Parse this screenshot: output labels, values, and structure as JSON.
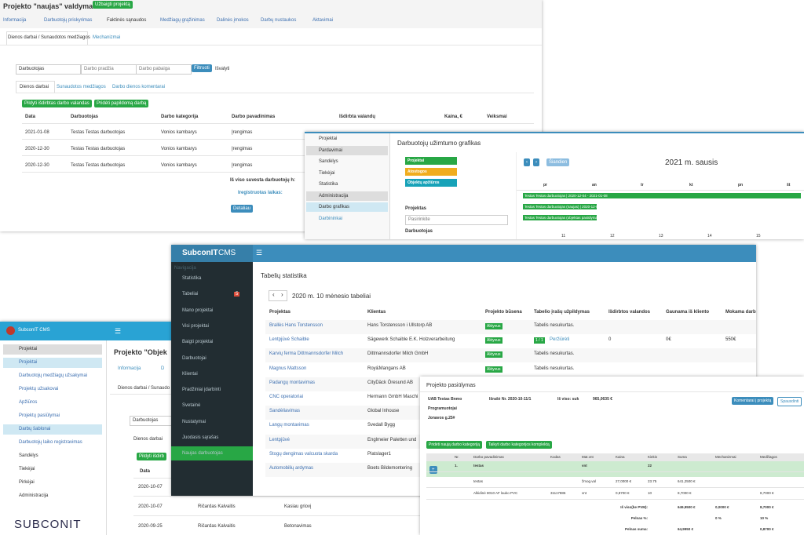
{
  "a": {
    "title": "Projekto \"naujas\" valdymas:",
    "finish": "Užbaigti projektą",
    "tabs": [
      "Informacija",
      "Darbuotojų priskyrimas",
      "Faktinės sąnaudos",
      "Medžiagų grąžinimas",
      "Dalinės įmokos",
      "Darbų nustaukos",
      "Aktavimai"
    ],
    "subtabs": [
      "Dienos darbai / Sunaudotos medžiagos",
      "Mechanizmai"
    ],
    "filter": [
      "Darbuotojas",
      "Darbo pradžia",
      "Darbo pabaiga",
      "Filtruoti",
      "Išvalyti"
    ],
    "tabs2": [
      "Dienos darbai",
      "Sunaudotos medžiagos",
      "Darbo dienos komentarai"
    ],
    "buttons": [
      "Pildyti išdirbtas darbo valandas",
      "Pridėti papildomą darbą"
    ],
    "headers": [
      "Data",
      "Darbuotojas",
      "Darbo kategorija",
      "Darbo pavadinimas",
      "Išdirbta valandų",
      "Kaina, €",
      "Veiksmai"
    ],
    "rows": [
      [
        "2021-01-08",
        "Testas Testas darbuotojas",
        "Vonios kambarys",
        "Įrengimas"
      ],
      [
        "2020-12-30",
        "Testas Testas darbuotojas",
        "Vonios kambarys",
        "Įrengimas"
      ],
      [
        "2020-12-30",
        "Testas Testas darbuotojas",
        "Vonios kambarys",
        "Įrengimas"
      ]
    ],
    "total": "Iš viso suvesta darbuotojų h:",
    "registered": "Iregistruotas laikas:",
    "details": "Detaliau"
  },
  "b": {
    "menu": [
      "Projektai",
      "Pardavimai",
      "Sandėlys",
      "Tiekėjai",
      "Statistika",
      "Administracija",
      "Darbo grafikas",
      "Darbininkai"
    ],
    "title": "Darbuotojų užimtumo grafikas",
    "legend": [
      "Projektai",
      "Atostogos",
      "Objektų apžiūros"
    ],
    "project": "Projektas",
    "select": "Pasirinkite",
    "worker": "Darbuotojas",
    "today": "Šiandien",
    "month": "2021 m. sausis",
    "days": [
      "pr",
      "an",
      "tr",
      "kt",
      "pn",
      "št"
    ],
    "dates": [
      "11",
      "12",
      "13",
      "14",
      "15"
    ],
    "events": [
      "Testas Testas darbuotojas | 2020-12-04 - 2021-01-08",
      "Testas Testas darbuotojas (naujas) | 2020-12-04 - 2021-01-08",
      "Testas Testas darbuotojas (objektas pasiūlymas) | 2020-12-30 - 2021-01-04"
    ]
  },
  "c": {
    "brand": "SubconIT",
    "brand2": "CMS",
    "nav": "Navigacija",
    "menu": [
      "Statistika",
      "Tabeliai",
      "Mano projektai",
      "Visi projektai",
      "Baigti projektai",
      "Darbuotojai",
      "Klientai",
      "Pradžiniai įdarbinti",
      "Svetainė",
      "Nustatymai",
      "Juodasis sąrašas",
      "Naujas darbuotojas"
    ],
    "badge": "5",
    "title": "Tabelių statistika",
    "period": "2020 m. 10 mėnesio tabeliai",
    "headers": [
      "Projektas",
      "Klientas",
      "Projekto būsena",
      "Tabelio įrašų užpildymas",
      "Išdirbtos valandos",
      "Gaunama iš kliento",
      "Mokama darb"
    ],
    "rows": [
      [
        "Brallės Hans Torstensson",
        "Hans Torstensson i Ullstorp AB",
        "Aktyvus",
        "Tabelis nesukurtas.",
        "",
        "",
        ""
      ],
      [
        "Lentpjūvė Schaible",
        "Sägewerk Schaible E.K. Holzverarbeitung",
        "Aktyvus",
        "1 / 1",
        "0",
        "0€",
        "550€"
      ],
      [
        "Karvių ferma Dittmannsdorfer Milch",
        "Dittmannsdorfer Milch GmbH",
        "Aktyvus",
        "Tabelis nesukurtas.",
        "",
        "",
        ""
      ],
      [
        "Magnus Mattsson",
        "Roy&Mangans AB",
        "Aktyvus",
        "Tabelis nesukurtas.",
        "",
        "",
        ""
      ],
      [
        "Padangų montavimas",
        "CityDäck Öresund AB",
        "",
        "",
        "",
        "",
        ""
      ],
      [
        "CNC operatoriai",
        "Hermann GmbH Maschi",
        "",
        "",
        "",
        "",
        ""
      ],
      [
        "Sandėliavimas",
        "Global Inhouse",
        "",
        "",
        "",
        "",
        ""
      ],
      [
        "Langų montavimas",
        "Svedall Bygg",
        "",
        "",
        "",
        "",
        ""
      ],
      [
        "Lentpjūvė",
        "Englmeier Paletten und",
        "",
        "",
        "",
        "",
        ""
      ],
      [
        "Stogų dengimas valcuota skarda",
        "Platslager1",
        "",
        "",
        "",
        "",
        ""
      ],
      [
        "Automobilių ardymas",
        "Boets Bildemontering",
        "",
        "",
        "",
        "",
        ""
      ]
    ],
    "view": "Peržiūrėti"
  },
  "d": {
    "brand": "SubconIT CMS",
    "menu": [
      "Projektai",
      "Projektai",
      "Darbuotojų medžiagų užsakymai",
      "Projektų užsakovai",
      "Apžiūros",
      "Projektų pasiūlymai",
      "Darbų šablonai",
      "Darbuotojų laiko registravimas",
      "Sandėlys",
      "Tiekėjai",
      "Pirkėjai",
      "Administracija"
    ],
    "logo": "SUBCONIT",
    "title": "Projekto \"Objek",
    "tabs": [
      "Informacija",
      "D"
    ],
    "subtab": "Dienos darbai / Sunaudo",
    "worker": "Darbuotojas",
    "tab2": "Dienos darbai",
    "button": "Pildyti išdirb",
    "header": "Data",
    "rows": [
      [
        "2020-10-07",
        "",
        ""
      ],
      [
        "2020-10-07",
        "Ričardas Kalvaitis",
        "Kasiau griovį"
      ],
      [
        "2020-09-25",
        "Ričardas Kalvaitis",
        "Betonavimas"
      ]
    ]
  },
  "e": {
    "title": "Projekto pasiūlymas",
    "company": [
      "UAB Testas Bnmo",
      "Programuotojai",
      "Jonavos g.25#"
    ],
    "number": "Išrašė Nr. 2020-10-11/1",
    "sum_label": "Iš viso: suk",
    "sum": "965,0635 €",
    "comments": "Komentarai į projektą",
    "print": "Spausdinti",
    "add": "Pridėti naują darbo kategoriją",
    "apply": "Taikyti darbo kategorijos komplektą",
    "headers": [
      "Nr.",
      "Darbo pavadinimas",
      "Kodas",
      "Mat.vnt",
      "Kaina",
      "Kiekis",
      "Suma",
      "Mechanizmai",
      "Medžiagos"
    ],
    "rows": [
      [
        "1.",
        "testas",
        "",
        "vnt",
        "",
        "22",
        "",
        "",
        ""
      ],
      [
        "",
        "testas",
        "",
        "žmog.val",
        "27,0000 €",
        "23.75",
        "641,2500 €",
        "",
        ""
      ],
      [
        "",
        "Alkidinė 8010 AF lauko PVC",
        "31117886",
        "vnt",
        "0,8700 €",
        "10",
        "8,7000 €",
        "",
        "8,7000 €"
      ]
    ],
    "totals": [
      [
        "Iš viso(be PVM):",
        "649,9500 €",
        "0,0000 €",
        "8,7000 €"
      ],
      [
        "Pelnas %:",
        "",
        "0 %",
        "10 %"
      ],
      [
        "Pelnas suma:",
        "64,9950 €",
        "",
        "0,8700 €"
      ]
    ]
  }
}
